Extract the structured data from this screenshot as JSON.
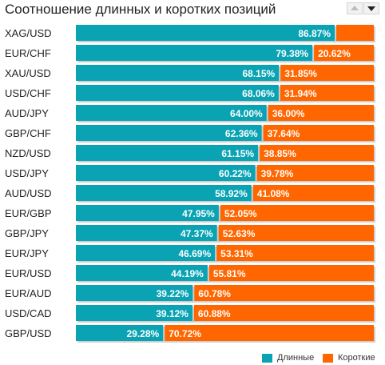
{
  "title": "Соотношение длинных и коротких позиций",
  "controls": {
    "up_icon": "triangle-up-icon",
    "down_icon": "triangle-down-icon"
  },
  "colors": {
    "long": "#0aa3b4",
    "short": "#ff6600",
    "shadow": "#cfcfcf",
    "label": "#222222"
  },
  "legend": {
    "long": "Длинные",
    "short": "Короткие"
  },
  "chart_data": {
    "type": "bar",
    "orientation": "horizontal",
    "stacked": true,
    "categories": [
      "XAG/USD",
      "EUR/CHF",
      "XAU/USD",
      "USD/CHF",
      "AUD/JPY",
      "GBP/CHF",
      "NZD/USD",
      "USD/JPY",
      "AUD/USD",
      "EUR/GBP",
      "GBP/JPY",
      "EUR/JPY",
      "EUR/USD",
      "EUR/AUD",
      "USD/CAD",
      "GBP/USD"
    ],
    "series": [
      {
        "name": "Длинные",
        "values": [
          86.87,
          79.38,
          68.15,
          68.06,
          64.0,
          62.36,
          61.15,
          60.22,
          58.92,
          47.95,
          47.37,
          46.69,
          44.19,
          39.22,
          39.12,
          29.28
        ],
        "labels": [
          "86.87%",
          "79.38%",
          "68.15%",
          "68.06%",
          "64.00%",
          "62.36%",
          "61.15%",
          "60.22%",
          "58.92%",
          "47.95%",
          "47.37%",
          "46.69%",
          "44.19%",
          "39.22%",
          "39.12%",
          "29.28%"
        ]
      },
      {
        "name": "Короткие",
        "values": [
          13.13,
          20.62,
          31.85,
          31.94,
          36.0,
          37.64,
          38.85,
          39.78,
          41.08,
          52.05,
          52.63,
          53.31,
          55.81,
          60.78,
          60.88,
          70.72
        ],
        "labels": [
          "",
          "20.62%",
          "31.85%",
          "31.94%",
          "36.00%",
          "37.64%",
          "38.85%",
          "39.78%",
          "41.08%",
          "52.05%",
          "52.63%",
          "53.31%",
          "55.81%",
          "60.78%",
          "60.88%",
          "70.72%"
        ]
      }
    ],
    "xlim": [
      0,
      100
    ]
  }
}
